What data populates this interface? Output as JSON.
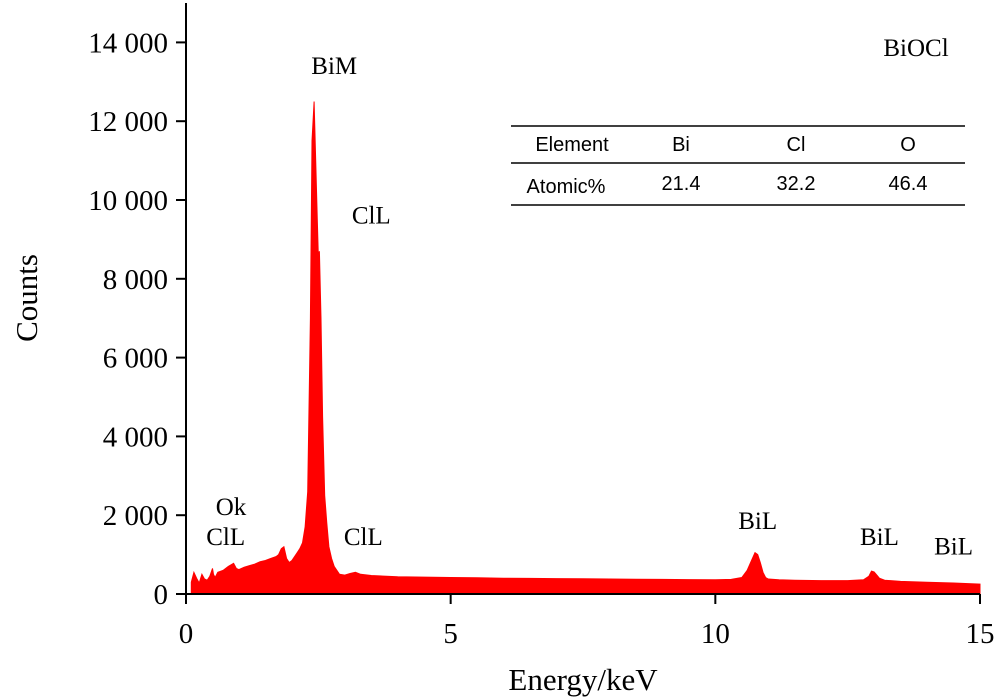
{
  "chart_data": {
    "type": "area",
    "title": "",
    "sample_label": "BiOCl",
    "xlabel": "Energy/keV",
    "ylabel": "Counts",
    "xlim": [
      0,
      15
    ],
    "ylim": [
      0,
      15000
    ],
    "x_ticks": [
      0,
      5,
      10,
      15
    ],
    "x_tick_labels": [
      "0",
      "5",
      "10",
      "15"
    ],
    "y_ticks": [
      0,
      2000,
      4000,
      6000,
      8000,
      10000,
      12000,
      14000
    ],
    "y_tick_labels": [
      "0",
      "2 000",
      "4 000",
      "6 000",
      "8 000",
      "10 000",
      "12 000",
      "14 000"
    ],
    "grid": false,
    "fill_color": "#ff0000",
    "series": [
      {
        "x": [
          0.1,
          0.15,
          0.2,
          0.25,
          0.3,
          0.35,
          0.4,
          0.45,
          0.5,
          0.52,
          0.55,
          0.6,
          0.7,
          0.8,
          0.9,
          0.95,
          1.0,
          1.1,
          1.2,
          1.3,
          1.4,
          1.5,
          1.6,
          1.7,
          1.75,
          1.8,
          1.85,
          1.9,
          1.95,
          2.0,
          2.05,
          2.1,
          2.15,
          2.2,
          2.25,
          2.3,
          2.35,
          2.38,
          2.42,
          2.45,
          2.48,
          2.5,
          2.52,
          2.55,
          2.58,
          2.62,
          2.66,
          2.7,
          2.75,
          2.8,
          2.85,
          2.9,
          3.0,
          3.1,
          3.2,
          3.3,
          3.5,
          4.0,
          4.5,
          5.0,
          5.5,
          6.0,
          6.5,
          7.0,
          7.5,
          8.0,
          8.5,
          9.0,
          9.5,
          10.0,
          10.3,
          10.5,
          10.6,
          10.7,
          10.75,
          10.8,
          10.85,
          10.9,
          10.95,
          11.0,
          11.2,
          11.5,
          12.0,
          12.5,
          12.8,
          12.9,
          12.95,
          13.0,
          13.05,
          13.1,
          13.2,
          13.5,
          14.0,
          14.5,
          15.0
        ],
        "y": [
          300,
          550,
          400,
          280,
          500,
          380,
          350,
          450,
          650,
          500,
          420,
          550,
          600,
          700,
          780,
          650,
          620,
          680,
          720,
          760,
          820,
          850,
          900,
          950,
          1000,
          1150,
          1200,
          900,
          800,
          850,
          950,
          1050,
          1150,
          1300,
          1700,
          2600,
          7000,
          11500,
          12500,
          11000,
          9500,
          8600,
          8700,
          7000,
          4500,
          2500,
          1800,
          1200,
          900,
          700,
          600,
          500,
          480,
          520,
          550,
          500,
          470,
          440,
          430,
          420,
          410,
          400,
          395,
          390,
          385,
          380,
          375,
          370,
          365,
          360,
          370,
          420,
          600,
          900,
          1050,
          1000,
          800,
          550,
          420,
          380,
          360,
          350,
          340,
          340,
          360,
          450,
          580,
          560,
          480,
          400,
          350,
          320,
          300,
          280,
          250
        ]
      }
    ],
    "peak_labels": [
      {
        "text": "BiM",
        "x": 2.8,
        "y": 13200
      },
      {
        "text": "ClL",
        "x": 3.5,
        "y": 9400
      },
      {
        "text": "Ok",
        "x": 0.85,
        "y": 2000
      },
      {
        "text": "ClL",
        "x": 0.75,
        "y": 1250
      },
      {
        "text": "ClL",
        "x": 3.35,
        "y": 1250
      },
      {
        "text": "BiL",
        "x": 10.8,
        "y": 1650
      },
      {
        "text": "BiL",
        "x": 13.1,
        "y": 1250
      },
      {
        "text": "BiL",
        "x": 14.5,
        "y": 1000
      }
    ],
    "table": {
      "header_label": "Element",
      "row_label": "Atomic%",
      "columns": [
        {
          "element": "Bi",
          "value": "21.4"
        },
        {
          "element": "Cl",
          "value": "32.2"
        },
        {
          "element": "O",
          "value": "46.4"
        }
      ]
    }
  }
}
